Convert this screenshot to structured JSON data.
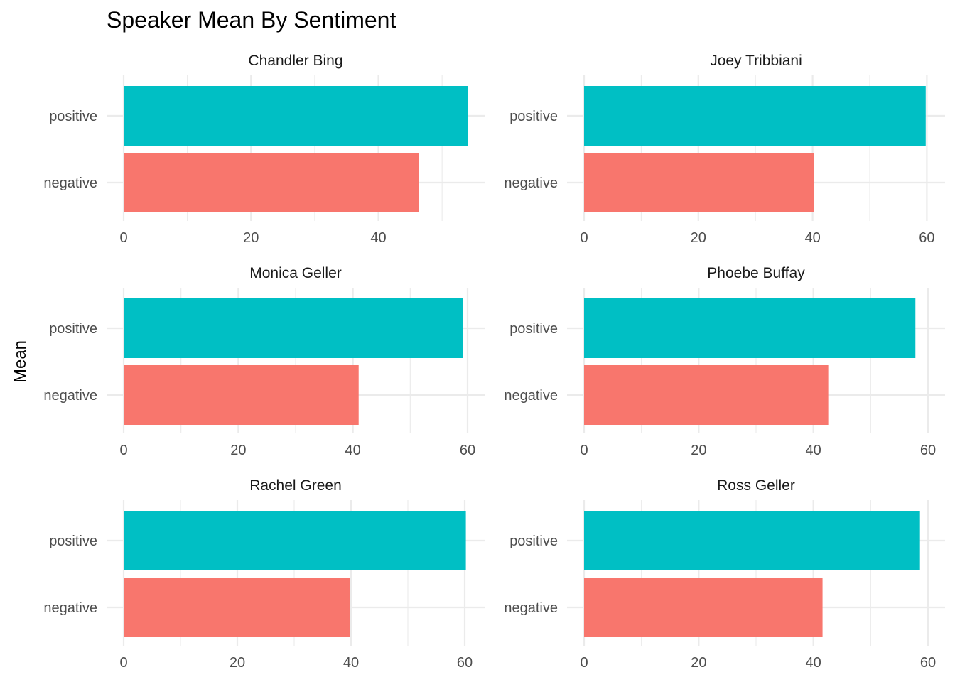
{
  "chart_data": {
    "type": "bar",
    "orientation": "horizontal",
    "title": "Speaker Mean By Sentiment",
    "ylabel": "Mean",
    "xlabel": "",
    "categories": [
      "negative",
      "positive"
    ],
    "colors": {
      "negative": "#F8766D",
      "positive": "#00BFC4"
    },
    "grid": true,
    "facets": [
      {
        "speaker": "Chandler Bing",
        "negative": 46.4,
        "positive": 54.0,
        "xlim": [
          0,
          54.0
        ],
        "ticks": [
          0,
          20,
          40
        ]
      },
      {
        "speaker": "Joey Tribbiani",
        "negative": 40.2,
        "positive": 59.8,
        "xlim": [
          0,
          60.2
        ],
        "ticks": [
          0,
          20,
          40,
          60
        ]
      },
      {
        "speaker": "Monica Geller",
        "negative": 41.0,
        "positive": 59.2,
        "xlim": [
          0,
          60.0
        ],
        "ticks": [
          0,
          20,
          40,
          60
        ]
      },
      {
        "speaker": "Phoebe Buffay",
        "negative": 42.6,
        "positive": 57.8,
        "xlim": [
          0,
          60.0
        ],
        "ticks": [
          0,
          20,
          40,
          60
        ]
      },
      {
        "speaker": "Rachel Green",
        "negative": 39.8,
        "positive": 60.2,
        "xlim": [
          0,
          60.5
        ],
        "ticks": [
          0,
          20,
          40,
          60
        ]
      },
      {
        "speaker": "Ross Geller",
        "negative": 41.6,
        "positive": 58.6,
        "xlim": [
          0,
          60.0
        ],
        "ticks": [
          0,
          20,
          40,
          60
        ]
      }
    ]
  }
}
